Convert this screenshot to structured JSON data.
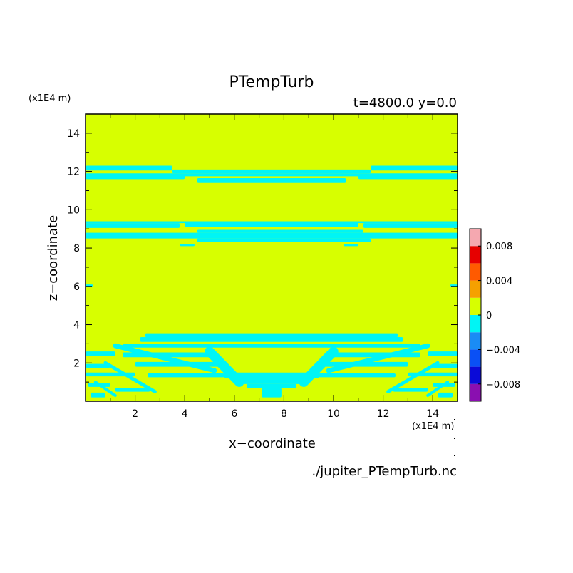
{
  "chart_data": {
    "type": "heatmap",
    "title": "PTempTurb",
    "subtitle": "t=4800.0 y=0.0",
    "xlabel": "x−coordinate",
    "ylabel": "z−coordinate",
    "x_unit": "(x1E4 m)",
    "y_unit": "(x1E4 m)",
    "footer": "./jupiter_PTempTurb.nc",
    "xlim": [
      0,
      15
    ],
    "ylim": [
      0,
      15
    ],
    "xticks": [
      "2",
      "4",
      "6",
      "8",
      "10",
      "12",
      "14"
    ],
    "yticks": [
      "2",
      "4",
      "6",
      "8",
      "10",
      "12",
      "14"
    ],
    "colorbar": {
      "levels": [
        {
          "low": -0.01,
          "high": -0.008,
          "color": "#8a0fb0"
        },
        {
          "low": -0.008,
          "high": -0.006,
          "color": "#0a0ad8"
        },
        {
          "low": -0.006,
          "high": -0.004,
          "color": "#0a50f5"
        },
        {
          "low": -0.004,
          "high": -0.002,
          "color": "#1a8cf5"
        },
        {
          "low": -0.002,
          "high": 0.0,
          "color": "#00f5f5"
        },
        {
          "low": 0.0,
          "high": 0.002,
          "color": "#d7ff00"
        },
        {
          "low": 0.002,
          "high": 0.004,
          "color": "#f5a000"
        },
        {
          "low": 0.004,
          "high": 0.006,
          "color": "#ff5a00"
        },
        {
          "low": 0.006,
          "high": 0.008,
          "color": "#e60000"
        },
        {
          "low": 0.008,
          "high": 0.01,
          "color": "#f5a8b0"
        }
      ],
      "tick_labels": [
        "0.008",
        "0.004",
        "0",
        "−0.004",
        "−0.008"
      ],
      "tick_values": [
        0.008,
        0.004,
        0.0,
        -0.004,
        -0.008
      ]
    },
    "background_value_color": "#d7ff00",
    "negative_band_color": "#00f5f5",
    "bands": [
      {
        "xmin": 0.0,
        "xmax": 3.5,
        "zmin": 12.05,
        "zmax": 12.3
      },
      {
        "xmin": 11.5,
        "xmax": 15.0,
        "zmin": 12.05,
        "zmax": 12.3
      },
      {
        "xmin": 3.5,
        "xmax": 11.5,
        "zmin": 11.9,
        "zmax": 12.1
      },
      {
        "xmin": 0.0,
        "xmax": 15.0,
        "zmin": 11.75,
        "zmax": 11.9
      },
      {
        "xmin": 0.0,
        "xmax": 4.0,
        "zmin": 11.6,
        "zmax": 11.85
      },
      {
        "xmin": 11.0,
        "xmax": 15.0,
        "zmin": 11.6,
        "zmax": 11.85
      },
      {
        "xmin": 4.5,
        "xmax": 10.5,
        "zmin": 11.4,
        "zmax": 11.65
      },
      {
        "xmin": 0.0,
        "xmax": 15.0,
        "zmin": 9.3,
        "zmax": 9.4
      },
      {
        "xmin": 0.0,
        "xmax": 3.8,
        "zmin": 9.05,
        "zmax": 9.3
      },
      {
        "xmin": 11.2,
        "xmax": 15.0,
        "zmin": 9.05,
        "zmax": 9.3
      },
      {
        "xmin": 4.0,
        "xmax": 11.0,
        "zmin": 9.1,
        "zmax": 9.35
      },
      {
        "xmin": 0.0,
        "xmax": 15.0,
        "zmin": 8.5,
        "zmax": 8.8
      },
      {
        "xmin": 4.5,
        "xmax": 11.2,
        "zmin": 8.8,
        "zmax": 8.95
      },
      {
        "xmin": 4.5,
        "xmax": 11.5,
        "zmin": 8.3,
        "zmax": 8.5
      },
      {
        "xmin": 3.8,
        "xmax": 4.4,
        "zmin": 8.1,
        "zmax": 8.2
      },
      {
        "xmin": 10.4,
        "xmax": 11.0,
        "zmin": 8.1,
        "zmax": 8.2
      },
      {
        "xmin": 0.0,
        "xmax": 0.3,
        "zmin": 6.0,
        "zmax": 6.1
      },
      {
        "xmin": 14.7,
        "xmax": 15.0,
        "zmin": 6.0,
        "zmax": 6.1
      },
      {
        "xmin": 2.4,
        "xmax": 12.6,
        "zmin": 3.35,
        "zmax": 3.55
      },
      {
        "xmin": 2.2,
        "xmax": 12.8,
        "zmin": 3.1,
        "zmax": 3.35
      },
      {
        "xmin": 1.5,
        "xmax": 13.5,
        "zmin": 2.8,
        "zmax": 3.0
      },
      {
        "xmin": 0.0,
        "xmax": 1.2,
        "zmin": 2.35,
        "zmax": 2.6
      },
      {
        "xmin": 13.8,
        "xmax": 15.0,
        "zmin": 2.35,
        "zmax": 2.6
      },
      {
        "xmin": 1.5,
        "xmax": 5.2,
        "zmin": 2.3,
        "zmax": 2.55
      },
      {
        "xmin": 9.8,
        "xmax": 13.5,
        "zmin": 2.3,
        "zmax": 2.55
      },
      {
        "xmin": 0.0,
        "xmax": 1.0,
        "zmin": 1.75,
        "zmax": 1.95
      },
      {
        "xmin": 14.0,
        "xmax": 15.0,
        "zmin": 1.75,
        "zmax": 1.95
      },
      {
        "xmin": 2.0,
        "xmax": 5.6,
        "zmin": 1.8,
        "zmax": 2.05
      },
      {
        "xmin": 9.4,
        "xmax": 13.0,
        "zmin": 1.8,
        "zmax": 2.05
      },
      {
        "xmin": 0.0,
        "xmax": 2.0,
        "zmin": 1.3,
        "zmax": 1.5
      },
      {
        "xmin": 13.0,
        "xmax": 15.0,
        "zmin": 1.3,
        "zmax": 1.5
      },
      {
        "xmin": 2.5,
        "xmax": 5.6,
        "zmin": 1.25,
        "zmax": 1.45
      },
      {
        "xmin": 9.4,
        "xmax": 12.5,
        "zmin": 1.25,
        "zmax": 1.45
      },
      {
        "xmin": 0.1,
        "xmax": 1.0,
        "zmin": 0.75,
        "zmax": 0.95
      },
      {
        "xmin": 14.0,
        "xmax": 14.9,
        "zmin": 0.75,
        "zmax": 0.95
      },
      {
        "xmin": 1.2,
        "xmax": 2.6,
        "zmin": 0.5,
        "zmax": 0.7
      },
      {
        "xmin": 12.4,
        "xmax": 13.8,
        "zmin": 0.5,
        "zmax": 0.7
      },
      {
        "xmin": 0.2,
        "xmax": 0.8,
        "zmin": 0.2,
        "zmax": 0.45
      },
      {
        "xmin": 14.2,
        "xmax": 14.8,
        "zmin": 0.2,
        "zmax": 0.45
      },
      {
        "xmin": 5.6,
        "xmax": 9.4,
        "zmin": 1.2,
        "zmax": 1.5
      },
      {
        "xmin": 6.1,
        "xmax": 8.9,
        "zmin": 0.9,
        "zmax": 1.2
      },
      {
        "xmin": 6.5,
        "xmax": 8.5,
        "zmin": 0.7,
        "zmax": 0.9
      },
      {
        "xmin": 7.1,
        "xmax": 7.9,
        "zmin": 0.2,
        "zmax": 0.7
      }
    ],
    "diagonal_bands": [
      {
        "x1": 1.2,
        "z1": 2.9,
        "x2": 5.2,
        "z2": 1.6,
        "w": 0.25
      },
      {
        "x1": 13.8,
        "z1": 2.9,
        "x2": 9.8,
        "z2": 1.6,
        "w": 0.25
      },
      {
        "x1": 5.0,
        "z1": 2.6,
        "x2": 6.2,
        "z2": 1.0,
        "w": 0.5
      },
      {
        "x1": 10.0,
        "z1": 2.6,
        "x2": 8.8,
        "z2": 1.0,
        "w": 0.5
      },
      {
        "x1": 0.8,
        "z1": 2.0,
        "x2": 2.8,
        "z2": 0.5,
        "w": 0.18
      },
      {
        "x1": 14.2,
        "z1": 2.0,
        "x2": 12.2,
        "z2": 0.5,
        "w": 0.18
      },
      {
        "x1": 0.4,
        "z1": 1.0,
        "x2": 1.2,
        "z2": 0.3,
        "w": 0.15
      },
      {
        "x1": 14.6,
        "z1": 1.0,
        "x2": 13.8,
        "z2": 0.3,
        "w": 0.15
      }
    ]
  }
}
